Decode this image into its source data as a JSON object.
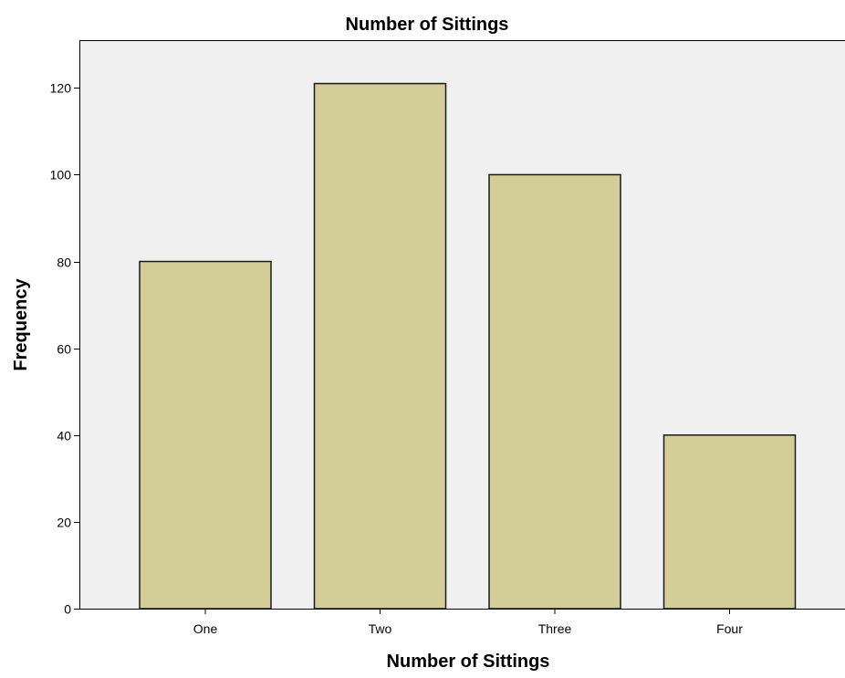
{
  "chart_data": {
    "type": "bar",
    "title": "Number of Sittings",
    "xlabel": "Number of Sittings",
    "ylabel": "Frequency",
    "categories": [
      "One",
      "Two",
      "Three",
      "Four"
    ],
    "values": [
      80,
      121,
      100,
      40
    ],
    "ylim": [
      0,
      131
    ],
    "yticks": [
      0,
      20,
      40,
      60,
      80,
      100,
      120
    ],
    "grid": false,
    "colors": {
      "bar_fill": "#d3ce97",
      "bar_stroke": "#1a1a1a",
      "plot_background": "#f0f0f0",
      "axis": "#000000"
    }
  }
}
